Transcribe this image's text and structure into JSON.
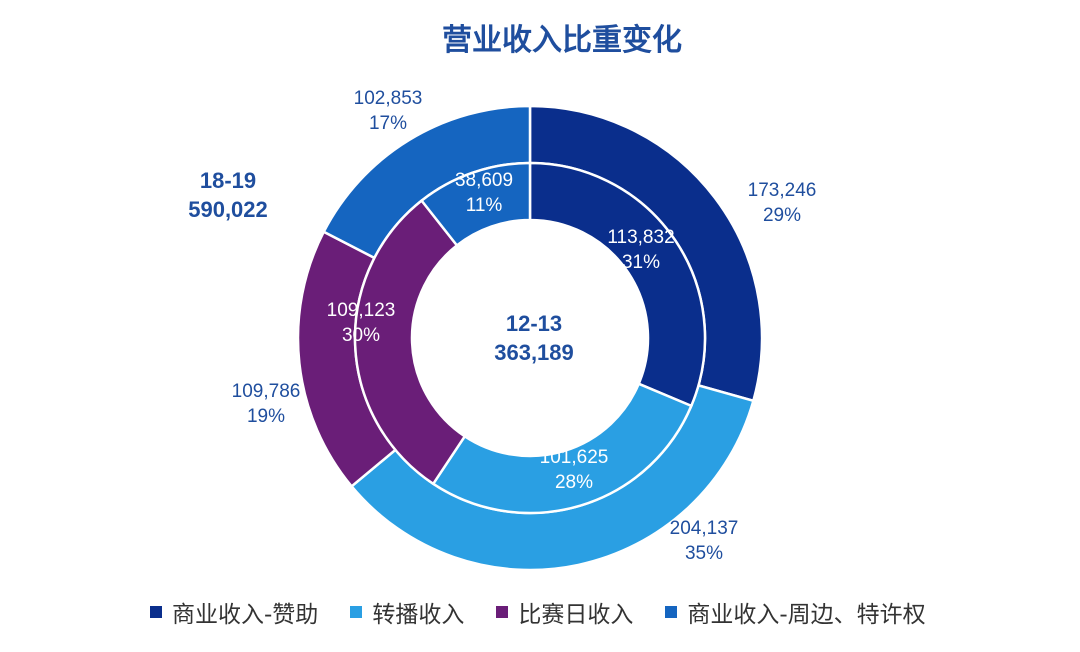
{
  "chart_data": {
    "type": "pie",
    "title": "营业收入比重变化",
    "categories": [
      "商业收入-赞助",
      "转播收入",
      "比赛日收入",
      "商业收入-周边、特许权"
    ],
    "colors": [
      "#0A2E8C",
      "#2A9FE3",
      "#6A1E78",
      "#1565C0"
    ],
    "series": [
      {
        "name": "18-19",
        "ring": "outer",
        "total": "590,022",
        "values": [
          173246,
          204137,
          109786,
          102853
        ],
        "labels": [
          "173,246",
          "204,137",
          "109,786",
          "102,853"
        ],
        "percents": [
          "29%",
          "35%",
          "19%",
          "17%"
        ]
      },
      {
        "name": "12-13",
        "ring": "inner",
        "total": "363,189",
        "values": [
          113832,
          101625,
          109123,
          38609
        ],
        "labels": [
          "113,832",
          "101,625",
          "109,123",
          "38,609"
        ],
        "percents": [
          "31%",
          "28%",
          "30%",
          "11%"
        ]
      }
    ]
  }
}
